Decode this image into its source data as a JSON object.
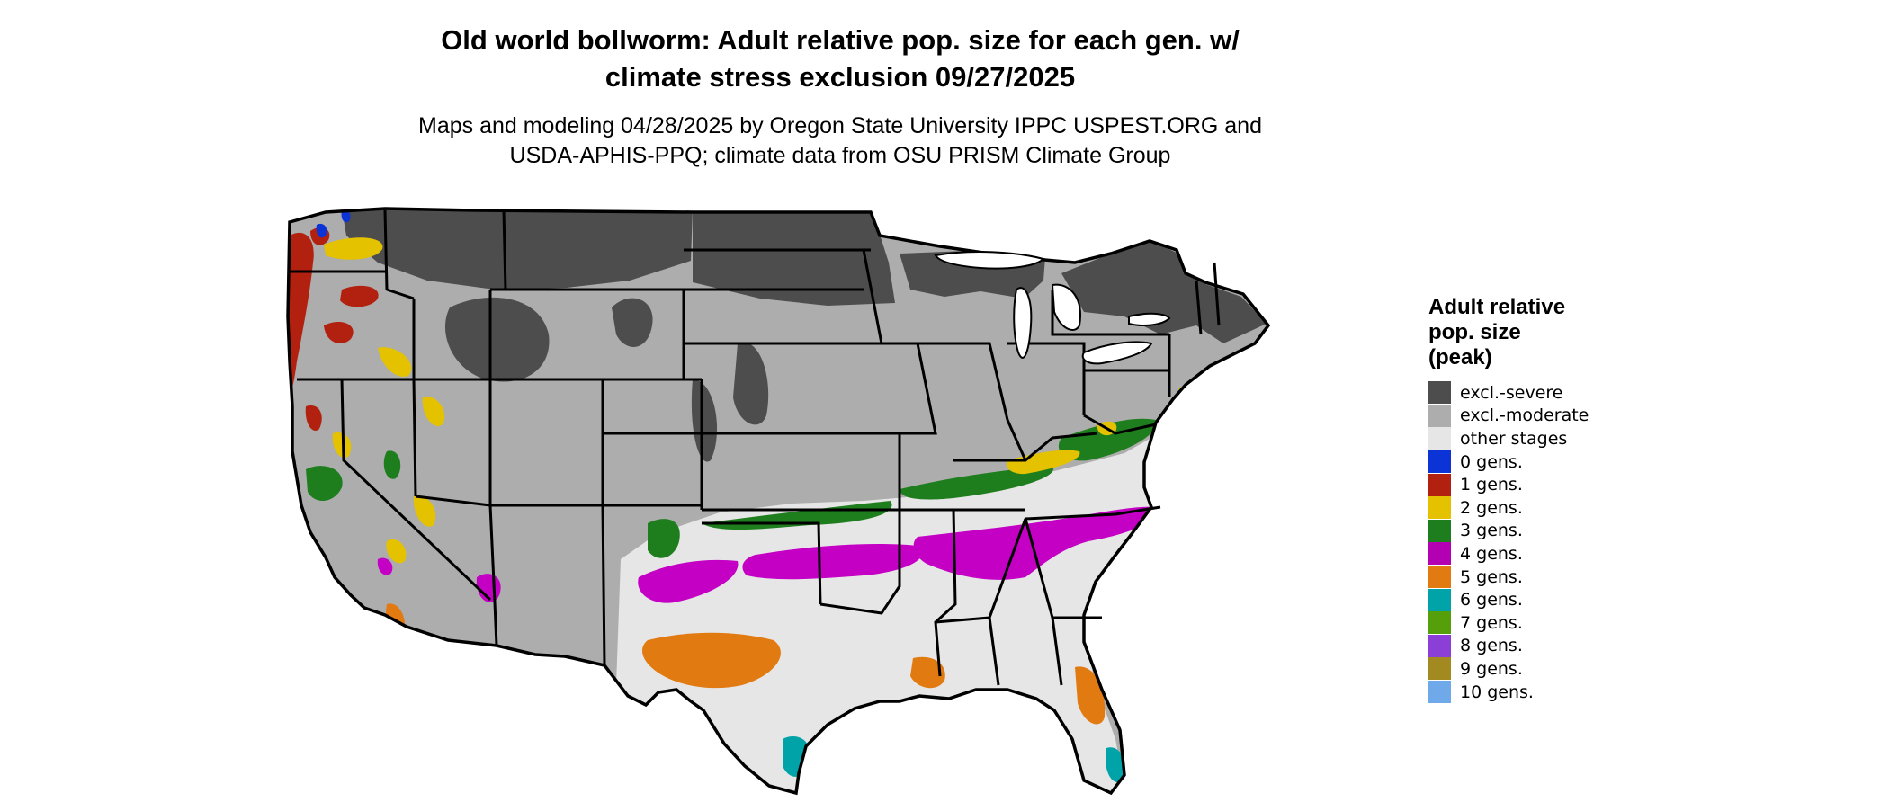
{
  "title": {
    "line1": "Old world bollworm: Adult relative pop. size for each gen. w/",
    "line2": "climate stress exclusion 09/27/2025"
  },
  "subtitle": {
    "line1": "Maps and modeling 04/28/2025 by Oregon State University IPPC USPEST.ORG and",
    "line2": "USDA-APHIS-PPQ; climate data from OSU PRISM Climate Group"
  },
  "legend": {
    "title_line1": "Adult relative",
    "title_line2": "pop. size",
    "title_line3": "(peak)",
    "items": [
      {
        "label": "excl.-severe",
        "color": "#4d4d4d"
      },
      {
        "label": "excl.-moderate",
        "color": "#adadad"
      },
      {
        "label": "other stages",
        "color": "#e6e6e6"
      },
      {
        "label": "0 gens.",
        "color": "#0b33d6"
      },
      {
        "label": "1 gens.",
        "color": "#b2200f"
      },
      {
        "label": "2 gens.",
        "color": "#e4c200"
      },
      {
        "label": "3 gens.",
        "color": "#1e7e1e"
      },
      {
        "label": "4 gens.",
        "color": "#b200b2"
      },
      {
        "label": "5 gens.",
        "color": "#e27a12"
      },
      {
        "label": "6 gens.",
        "color": "#00a3a8"
      },
      {
        "label": "7 gens.",
        "color": "#55a00a"
      },
      {
        "label": "8 gens.",
        "color": "#8b3fd6"
      },
      {
        "label": "9 gens.",
        "color": "#a28a20"
      },
      {
        "label": "10 gens.",
        "color": "#6fa9ea"
      }
    ]
  }
}
